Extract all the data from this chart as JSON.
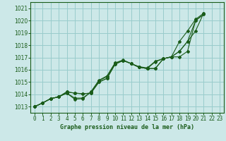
{
  "xlabel": "Graphe pression niveau de la mer (hPa)",
  "background_color": "#cce8e8",
  "grid_color": "#99cccc",
  "line_color": "#1a5c1a",
  "xlim": [
    -0.5,
    23.5
  ],
  "ylim": [
    1012.5,
    1021.5
  ],
  "yticks": [
    1013,
    1014,
    1015,
    1016,
    1017,
    1018,
    1019,
    1020,
    1021
  ],
  "xticks": [
    0,
    1,
    2,
    3,
    4,
    5,
    6,
    7,
    8,
    9,
    10,
    11,
    12,
    13,
    14,
    15,
    16,
    17,
    18,
    19,
    20,
    21,
    22,
    23
  ],
  "series1_y": [
    1013.0,
    1013.3,
    1013.65,
    1013.8,
    1014.1,
    1013.7,
    1013.7,
    1014.2,
    1015.1,
    1015.45,
    1016.55,
    1016.75,
    1016.5,
    1016.2,
    1016.1,
    1016.65,
    1016.9,
    1017.05,
    1017.5,
    1018.3,
    1020.0,
    1020.5
  ],
  "series2_y": [
    1013.0,
    1013.3,
    1013.65,
    1013.8,
    1014.2,
    1014.1,
    1014.05,
    1014.1,
    1015.0,
    1015.3,
    1016.45,
    1016.75,
    1016.5,
    1016.2,
    1016.1,
    1016.1,
    1016.9,
    1017.05,
    1017.05,
    1017.5,
    1020.0,
    1020.5
  ],
  "series3_y": [
    1013.0,
    1013.3,
    1013.65,
    1013.8,
    1014.1,
    1013.6,
    1013.65,
    1014.2,
    1015.15,
    1015.5,
    1016.55,
    1016.8,
    1016.5,
    1016.25,
    1016.15,
    1016.7,
    1016.9,
    1017.05,
    1018.3,
    1019.15,
    1020.1,
    1020.6
  ],
  "series4_y": [
    1013.0,
    1013.3,
    1013.65,
    1013.8,
    1014.2,
    1014.1,
    1014.05,
    1014.1,
    1015.0,
    1015.3,
    1016.45,
    1016.75,
    1016.5,
    1016.2,
    1016.1,
    1016.1,
    1016.9,
    1017.05,
    1017.5,
    1018.3,
    1019.15,
    1020.6
  ],
  "series_x": [
    0,
    1,
    2,
    3,
    4,
    5,
    6,
    7,
    8,
    9,
    10,
    11,
    12,
    13,
    14,
    15,
    16,
    17,
    18,
    19,
    20,
    21
  ],
  "tick_fontsize": 5.5,
  "xlabel_fontsize": 6.0
}
